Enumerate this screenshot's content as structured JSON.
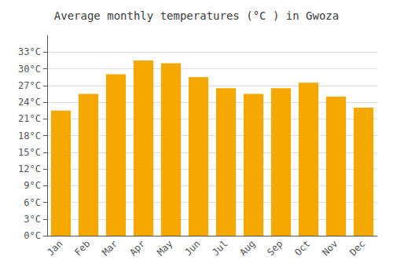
{
  "chart_data": {
    "type": "bar",
    "title": "Average monthly temperatures (°C ) in Gwoza",
    "categories": [
      "Jan",
      "Feb",
      "Mar",
      "Apr",
      "May",
      "Jun",
      "Jul",
      "Aug",
      "Sep",
      "Oct",
      "Nov",
      "Dec"
    ],
    "values": [
      22.5,
      25.5,
      29.0,
      31.5,
      31.0,
      28.5,
      26.5,
      25.5,
      26.5,
      27.5,
      25.0,
      23.0
    ],
    "color": "#F5A800",
    "ylim": [
      0,
      36
    ],
    "yticks": [
      {
        "value": 0,
        "label": "0°C"
      },
      {
        "value": 3,
        "label": "3°C"
      },
      {
        "value": 6,
        "label": "6°C"
      },
      {
        "value": 9,
        "label": "9°C"
      },
      {
        "value": 12,
        "label": "12°C"
      },
      {
        "value": 15,
        "label": "15°C"
      },
      {
        "value": 18,
        "label": "18°C"
      },
      {
        "value": 21,
        "label": "21°C"
      },
      {
        "value": 24,
        "label": "24°C"
      },
      {
        "value": 27,
        "label": "27°C"
      },
      {
        "value": 30,
        "label": "30°C"
      },
      {
        "value": 33,
        "label": "33°C"
      }
    ],
    "grid": true
  }
}
